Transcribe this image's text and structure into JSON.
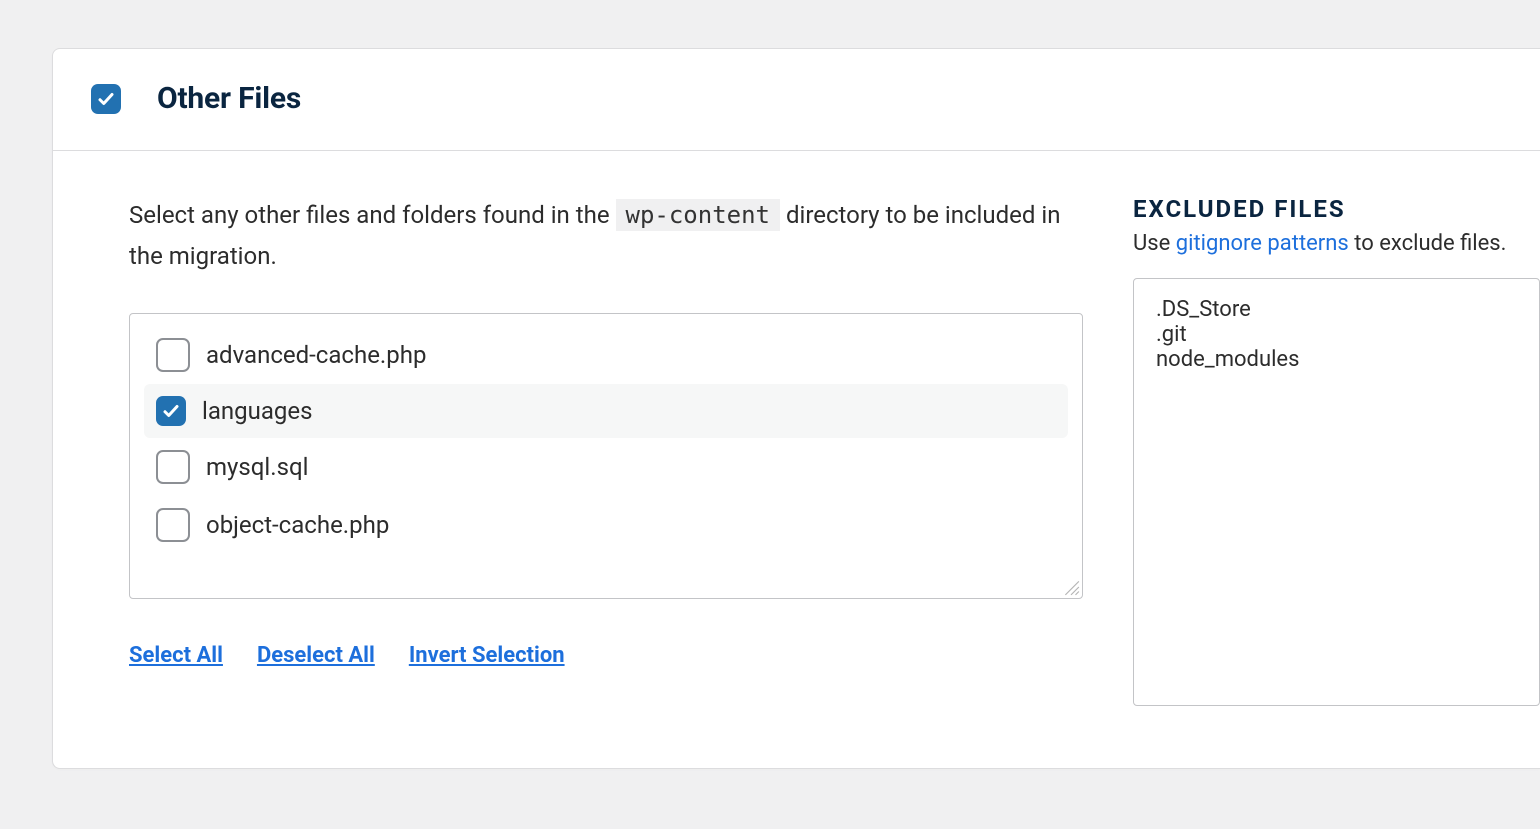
{
  "colors": {
    "page_bg": "#f0f0f1",
    "panel_bg": "#ffffff",
    "border": "#dcdcde",
    "text_dark": "#0a2540",
    "text_body": "#222222",
    "accent_blue": "#2271b1",
    "link_blue": "#1d6fdc",
    "code_bg": "#f0f0f1",
    "row_selected_bg": "#f6f7f7",
    "checkbox_border": "#8c8f94"
  },
  "section": {
    "checkbox_checked": true,
    "title": "Other Files"
  },
  "description": {
    "prefix": "Select any other files and folders found in the ",
    "code": "wp-content",
    "suffix": " directory to be included in the migration."
  },
  "files": [
    {
      "name": "advanced-cache.php",
      "checked": false
    },
    {
      "name": "languages",
      "checked": true
    },
    {
      "name": "mysql.sql",
      "checked": false
    },
    {
      "name": "object-cache.php",
      "checked": false
    }
  ],
  "actions": {
    "select_all": "Select All",
    "deselect_all": "Deselect All",
    "invert_selection": "Invert Selection"
  },
  "excluded": {
    "title": "EXCLUDED FILES",
    "sub_prefix": "Use ",
    "sub_link": "gitignore patterns",
    "sub_suffix": " to exclude files.",
    "content": ".DS_Store\n.git\nnode_modules"
  }
}
